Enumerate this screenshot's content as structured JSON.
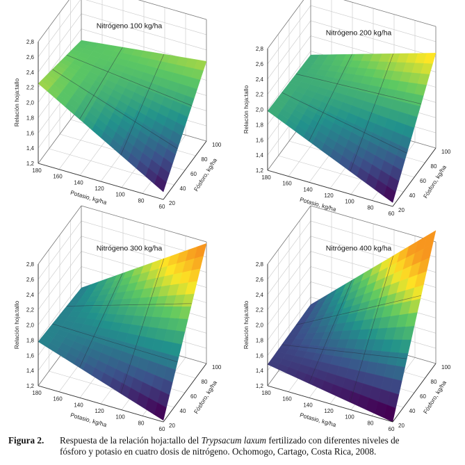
{
  "figure": {
    "panels": [
      {
        "title": "Nitrógeno 100 kg/ha",
        "ylabel": "Relación hoja:tallo",
        "xlabel": "Potasio, kg/ha",
        "zlabel": "Fósforo, kg/ha",
        "y_ticks": [
          "1,2",
          "1,4",
          "1,6",
          "1,8",
          "2,0",
          "2,2",
          "2,4",
          "2,6",
          "2,8"
        ],
        "x_ticks": [
          "180",
          "160",
          "140",
          "120",
          "100",
          "80",
          "60"
        ],
        "z_ticks": [
          "20",
          "40",
          "60",
          "80",
          "100"
        ]
      },
      {
        "title": "Nitrógeno 200 kg/ha",
        "ylabel": "Relación hoja:tallo",
        "xlabel": "Potasio, kg/ha",
        "zlabel": "Fósforo, kg/ha",
        "y_ticks": [
          "1,2",
          "1,4",
          "1,6",
          "1,8",
          "2,0",
          "2,2",
          "2,4",
          "2,6",
          "2,8"
        ],
        "x_ticks": [
          "180",
          "160",
          "140",
          "120",
          "100",
          "80",
          "60"
        ],
        "z_ticks": [
          "20",
          "40",
          "60",
          "80",
          "100"
        ]
      },
      {
        "title": "Nitrógeno 300 kg/ha",
        "ylabel": "Relación hoja:tallo",
        "xlabel": "Potasio, kg/ha",
        "zlabel": "Fósforo, kg/ha",
        "y_ticks": [
          "1,2",
          "1,4",
          "1,6",
          "1,8",
          "2,0",
          "2,2",
          "2,4",
          "2,6",
          "2,8"
        ],
        "x_ticks": [
          "180",
          "160",
          "140",
          "120",
          "100",
          "80",
          "60"
        ],
        "z_ticks": [
          "20",
          "40",
          "60",
          "80",
          "100"
        ]
      },
      {
        "title": "Nitrógeno 400 kg/ha",
        "ylabel": "Relación hoja:tallo",
        "xlabel": "Potasio, kg/ha",
        "zlabel": "Fósforo, kg/ha",
        "y_ticks": [
          "1,2",
          "1,4",
          "1,6",
          "1,8",
          "2,0",
          "2,2",
          "2,4",
          "2,6",
          "2,8"
        ],
        "x_ticks": [
          "180",
          "160",
          "140",
          "120",
          "100",
          "80",
          "60"
        ],
        "z_ticks": [
          "20",
          "40",
          "60",
          "80",
          "100"
        ]
      }
    ]
  },
  "chart_data": [
    {
      "type": "surface",
      "title": "Nitrógeno 100 kg/ha",
      "xlabel": "Potasio, kg/ha",
      "ylabel": "Relación hoja:tallo",
      "zlabel": "Fósforo, kg/ha",
      "x": [
        180,
        60
      ],
      "z": [
        20,
        100
      ],
      "ylim": [
        1.2,
        2.8
      ],
      "corners": {
        "k180_p20": 2.25,
        "k180_p100": 2.05,
        "k60_p20": 1.3,
        "k60_p100": 2.25
      }
    },
    {
      "type": "surface",
      "title": "Nitrógeno 200 kg/ha",
      "xlabel": "Potasio, kg/ha",
      "ylabel": "Relación hoja:tallo",
      "zlabel": "Fósforo, kg/ha",
      "x": [
        180,
        60
      ],
      "z": [
        20,
        100
      ],
      "ylim": [
        1.2,
        2.8
      ],
      "corners": {
        "k180_p20": 1.98,
        "k180_p100": 1.95,
        "k60_p20": 1.25,
        "k60_p100": 2.45
      }
    },
    {
      "type": "surface",
      "title": "Nitrógeno 300 kg/ha",
      "xlabel": "Potasio, kg/ha",
      "ylabel": "Relación hoja:tallo",
      "zlabel": "Fósforo, kg/ha",
      "x": [
        180,
        60
      ],
      "z": [
        20,
        100
      ],
      "ylim": [
        1.2,
        2.8
      ],
      "corners": {
        "k180_p20": 1.78,
        "k180_p100": 1.72,
        "k60_p20": 1.22,
        "k60_p100": 2.78
      }
    },
    {
      "type": "surface",
      "title": "Nitrógeno 400 kg/ha",
      "xlabel": "Potasio, kg/ha",
      "ylabel": "Relación hoja:tallo",
      "zlabel": "Fósforo, kg/ha",
      "x": [
        180,
        60
      ],
      "z": [
        20,
        100
      ],
      "ylim": [
        1.2,
        2.8
      ],
      "corners": {
        "k180_p20": 1.48,
        "k180_p100": 1.5,
        "k60_p20": 1.2,
        "k60_p100": 2.95
      }
    }
  ],
  "caption": {
    "label": "Figura 2.",
    "line1_a": "Respuesta de la relación hoja:tallo del ",
    "line1_species": "Trypsacum laxum",
    "line1_b": " fertilizado con diferentes niveles de",
    "line2": "fósforo y potasio en cuatro dosis de nitrógeno. Ochomogo, Cartago, Costa Rica, 2008."
  }
}
